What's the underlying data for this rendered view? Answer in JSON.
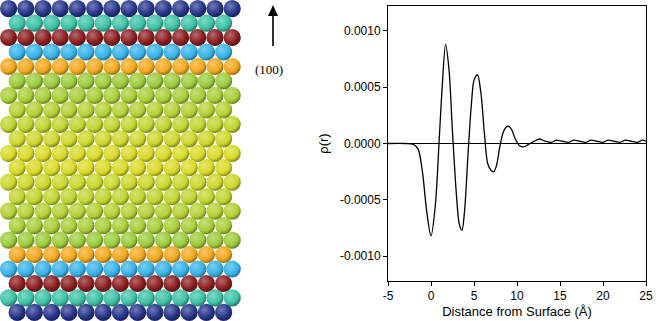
{
  "slab_diagram": {
    "surface_label": "(100)"
  },
  "chart_data": {
    "type": "line",
    "x_label": "Distance from Surface (Å)",
    "y_label": "ρ(r)",
    "x": [
      -5,
      -3,
      -2,
      -1.5,
      -1,
      -0.5,
      0,
      0.5,
      1,
      1.3,
      1.7,
      2.1,
      2.5,
      3,
      3.3,
      3.6,
      3.9,
      4.3,
      4.7,
      5,
      5.4,
      5.8,
      6.2,
      6.6,
      7,
      7.3,
      7.6,
      8,
      8.4,
      8.8,
      9.1,
      9.4,
      9.8,
      10.3,
      10.8,
      11.3,
      12,
      12.6,
      13.3,
      14,
      14.6,
      15.3,
      16,
      16.6,
      17.3,
      18,
      18.6,
      19.3,
      20,
      20.6,
      21.3,
      22,
      22.6,
      23.3,
      24,
      24.6,
      25
    ],
    "values": [
      0,
      0,
      -1e-05,
      -5e-05,
      -0.00025,
      -0.0006,
      -0.00082,
      -0.00055,
      0.0001,
      0.0005,
      0.00088,
      0.00065,
      0.0001,
      -0.0005,
      -0.00072,
      -0.00077,
      -0.0006,
      -0.0001,
      0.00035,
      0.00056,
      0.00061,
      0.00045,
      0.0001,
      -0.00018,
      -0.00024,
      -0.00025,
      -0.0002,
      -3e-05,
      0.0001,
      0.00015,
      0.00015,
      0.00012,
      4e-05,
      -2e-05,
      -3e-05,
      -1e-05,
      2e-05,
      4e-05,
      2e-05,
      1e-05,
      3e-05,
      2e-05,
      1e-05,
      3e-05,
      2e-05,
      1e-05,
      3e-05,
      2e-05,
      1e-05,
      3e-05,
      2e-05,
      1e-05,
      3e-05,
      2e-05,
      1e-05,
      3e-05,
      2e-05
    ],
    "color": "#000000",
    "line_style": "solid",
    "xlim": [
      -5,
      25
    ],
    "xticks": [
      -5,
      0,
      5,
      10,
      15,
      20,
      25
    ],
    "ylim": [
      -0.00122,
      0.00122
    ],
    "yticks": [
      {
        "value": -0.001,
        "label": "-0.0010"
      },
      {
        "value": -0.0005,
        "label": "-0.0005"
      },
      {
        "value": 0,
        "label": "0.0000"
      },
      {
        "value": 0.0005,
        "label": "0.0005"
      },
      {
        "value": 0.001,
        "label": "0.0010"
      }
    ],
    "grid": false
  }
}
